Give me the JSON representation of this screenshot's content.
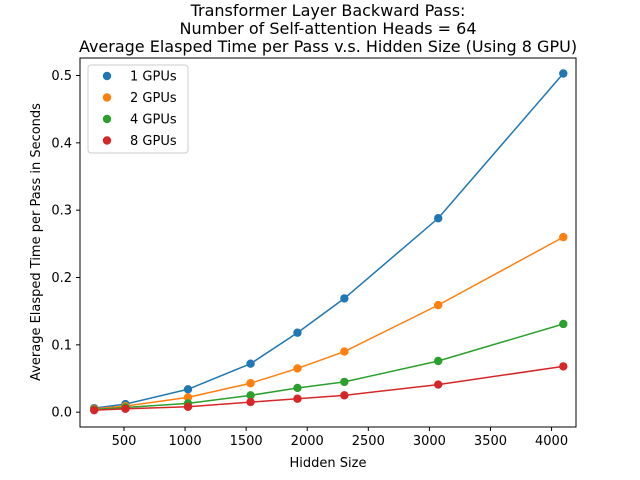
{
  "chart_data": {
    "type": "line",
    "title_lines": [
      "Transformer Layer Backward Pass:",
      "Number of Self-attention Heads = 64",
      "Average Elasped Time per Pass v.s. Hidden Size (Using 8 GPU)"
    ],
    "xlabel": "Hidden Size",
    "ylabel": "Average Elasped Time per Pass in Seconds",
    "xlim": [
      140,
      4200
    ],
    "ylim": [
      -0.022,
      0.526
    ],
    "xticks": [
      500,
      1000,
      1500,
      2000,
      2500,
      3000,
      3500,
      4000
    ],
    "yticks": [
      0.0,
      0.1,
      0.2,
      0.3,
      0.4,
      0.5
    ],
    "ytick_labels": [
      "0.0",
      "0.1",
      "0.2",
      "0.3",
      "0.4",
      "0.5"
    ],
    "xtick_labels": [
      "500",
      "1000",
      "1500",
      "2000",
      "2500",
      "3000",
      "3500",
      "4000"
    ],
    "x": [
      256,
      512,
      1024,
      1536,
      1920,
      2304,
      3072,
      4096
    ],
    "legend_placement": "upper-left",
    "grid": false,
    "series": [
      {
        "name": "1 GPUs",
        "color": "#1f77b4",
        "values": [
          0.006,
          0.012,
          0.034,
          0.072,
          0.118,
          0.169,
          0.288,
          0.503
        ]
      },
      {
        "name": "2 GPUs",
        "color": "#ff7f0e",
        "values": [
          0.005,
          0.009,
          0.022,
          0.043,
          0.065,
          0.09,
          0.159,
          0.26
        ]
      },
      {
        "name": "4 GPUs",
        "color": "#2ca02c",
        "values": [
          0.004,
          0.007,
          0.013,
          0.025,
          0.036,
          0.045,
          0.076,
          0.131
        ]
      },
      {
        "name": "8 GPUs",
        "color": "#d62728",
        "values": [
          0.003,
          0.005,
          0.008,
          0.015,
          0.02,
          0.025,
          0.041,
          0.068
        ]
      }
    ]
  }
}
